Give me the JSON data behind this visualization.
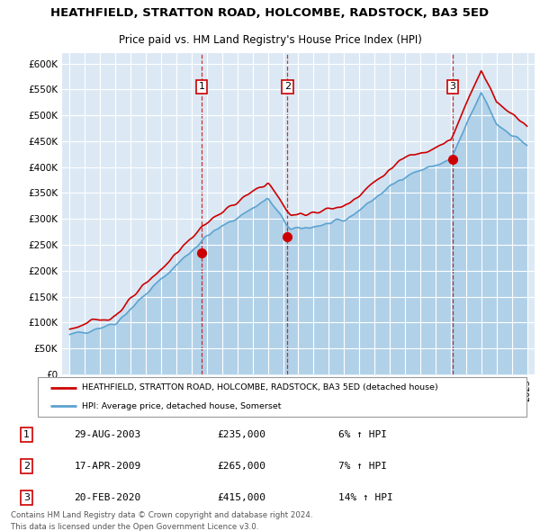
{
  "title": "HEATHFIELD, STRATTON ROAD, HOLCOMBE, RADSTOCK, BA3 5ED",
  "subtitle": "Price paid vs. HM Land Registry's House Price Index (HPI)",
  "legend_line1": "HEATHFIELD, STRATTON ROAD, HOLCOMBE, RADSTOCK, BA3 5ED (detached house)",
  "legend_line2": "HPI: Average price, detached house, Somerset",
  "footer1": "Contains HM Land Registry data © Crown copyright and database right 2024.",
  "footer2": "This data is licensed under the Open Government Licence v3.0.",
  "transactions": [
    {
      "label": "1",
      "date": "29-AUG-2003",
      "price": 235000,
      "pct": "6%",
      "x": 2003.66
    },
    {
      "label": "2",
      "date": "17-APR-2009",
      "price": 265000,
      "pct": "7%",
      "x": 2009.29
    },
    {
      "label": "3",
      "date": "20-FEB-2020",
      "price": 415000,
      "pct": "14%",
      "x": 2020.13
    }
  ],
  "hpi_color": "#5ba3d0",
  "price_color": "#cc0000",
  "transaction_color": "#cc0000",
  "background_color": "#dce9f5",
  "ylim": [
    0,
    620000
  ],
  "yticks": [
    0,
    50000,
    100000,
    150000,
    200000,
    250000,
    300000,
    350000,
    400000,
    450000,
    500000,
    550000,
    600000
  ],
  "xlim": [
    1994.5,
    2025.5
  ]
}
